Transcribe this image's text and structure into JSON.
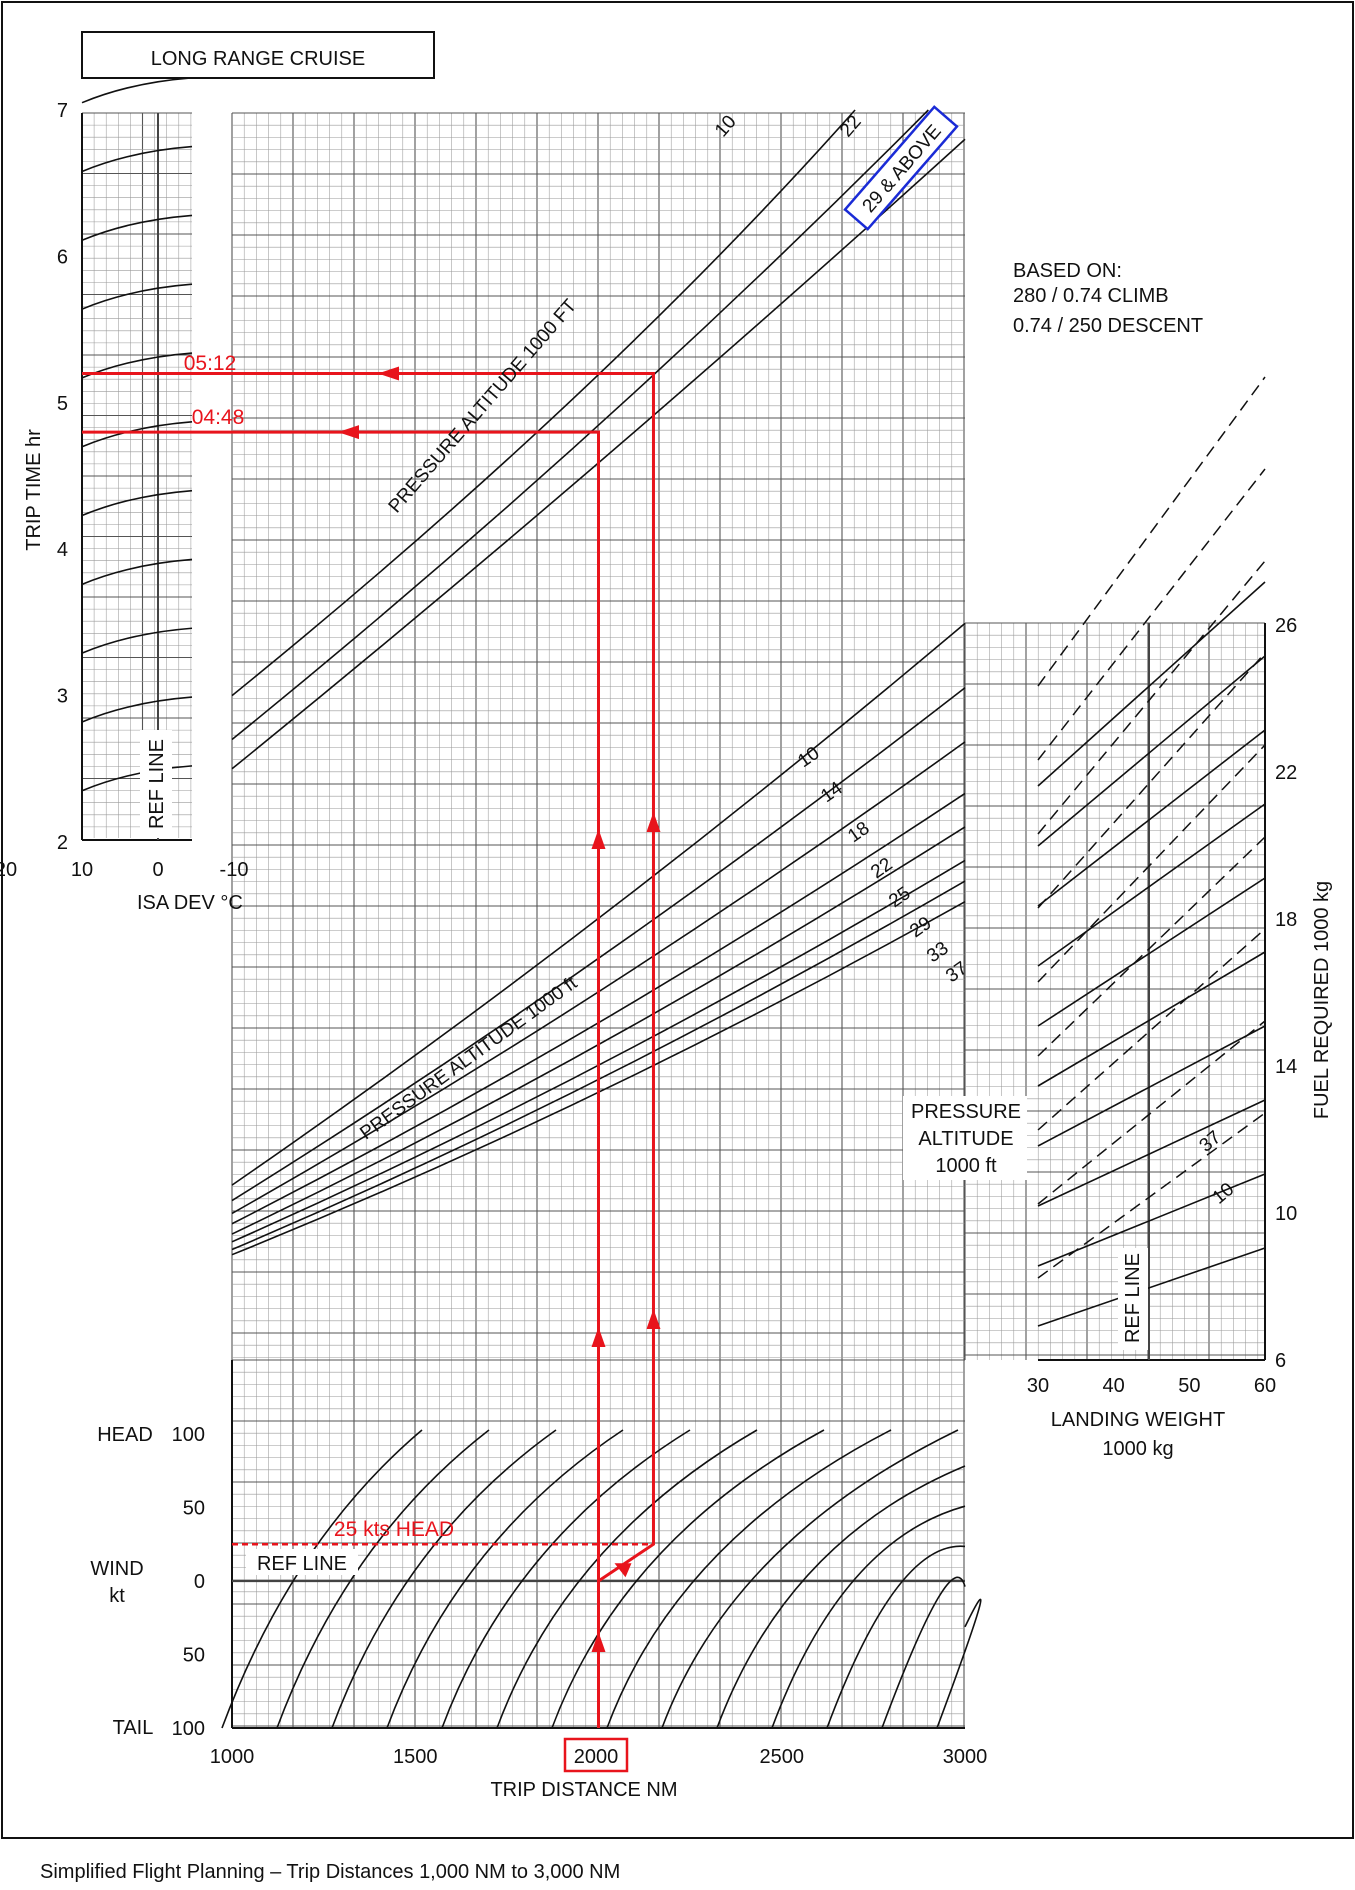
{
  "title": "LONG RANGE CRUISE",
  "caption": "Simplified Flight Planning – Trip Distances 1,000 NM to 3,000 NM",
  "based_on": [
    "BASED ON:",
    "280 / 0.74 CLIMB",
    "0.74 / 250 DESCENT"
  ],
  "colors": {
    "annotation": "#e8141c",
    "highlight_box": "#1a2bd6",
    "curves": "#111111",
    "grid": "#9a9a9a"
  },
  "labels": {
    "trip_time_axis": "TRIP TIME  hr",
    "isa_dev_axis": "ISA DEV °C",
    "ref_line": "REF LINE",
    "pressure_alt_ft_upper": "PRESSURE ALTITUDE  1000 FT",
    "pressure_alt_ft_lower": "PRESSURE ALTITUDE  1000 ft",
    "above_29": "29 & ABOVE",
    "fuel_axis": "FUEL REQUIRED  1000 kg",
    "landing_weight_1": "LANDING WEIGHT",
    "landing_weight_2": "1000 kg",
    "press_alt_block": [
      "PRESSURE",
      "ALTITUDE",
      "1000 ft"
    ],
    "head": "HEAD",
    "tail": "TAIL",
    "wind_1": "WIND",
    "wind_2": "kt",
    "trip_distance": "TRIP DISTANCE  NM"
  },
  "annotations": {
    "time_short": "04:48",
    "time_long": "05:12",
    "wind": "25 kts HEAD",
    "distance_box": "2000"
  },
  "chart_data": [
    {
      "type": "line",
      "name": "Trip time",
      "x_label": "TRIP DISTANCE  NM",
      "y_label": "TRIP TIME  hr",
      "x_range": [
        1000,
        3000
      ],
      "y_range": [
        2,
        7
      ],
      "y_ticks": [
        "2",
        "3",
        "4",
        "5",
        "6",
        "7"
      ],
      "grid": true,
      "series": [
        {
          "name": "10",
          "points": [
            [
              1000,
              3.0
            ],
            [
              2000,
              5.0
            ],
            [
              2700,
              7.0
            ]
          ]
        },
        {
          "name": "22",
          "points": [
            [
              1000,
              2.7
            ],
            [
              2000,
              4.7
            ],
            [
              2900,
              7.0
            ]
          ]
        },
        {
          "name": "29 & ABOVE",
          "points": [
            [
              1000,
              2.5
            ],
            [
              2000,
              4.5
            ],
            [
              3000,
              6.8
            ]
          ]
        }
      ]
    },
    {
      "type": "line",
      "name": "ISA deviation correction",
      "x_label": "ISA DEV °C",
      "x_ticks": [
        "20",
        "10",
        "0",
        "-10"
      ],
      "x_range": [
        20,
        -10
      ],
      "reference": "REF LINE at 0"
    },
    {
      "type": "line",
      "name": "Fuel required vs trip distance",
      "x_range": [
        1000,
        3000
      ],
      "series": [
        {
          "name": "10",
          "points": [
            [
              1000,
              12.1
            ],
            [
              3000,
              33.9
            ]
          ]
        },
        {
          "name": "14",
          "points": [
            [
              1000,
              11.5
            ],
            [
              3000,
              31.4
            ]
          ]
        },
        {
          "name": "18",
          "points": [
            [
              1000,
              11.0
            ],
            [
              3000,
              29.3
            ]
          ]
        },
        {
          "name": "22",
          "points": [
            [
              1000,
              10.6
            ],
            [
              3000,
              27.3
            ]
          ]
        },
        {
          "name": "25",
          "points": [
            [
              1000,
              10.2
            ],
            [
              3000,
              26.0
            ]
          ]
        },
        {
          "name": "29",
          "points": [
            [
              1000,
              9.9
            ],
            [
              3000,
              24.7
            ]
          ]
        },
        {
          "name": "33",
          "points": [
            [
              1000,
              9.6
            ],
            [
              3000,
              23.9
            ]
          ]
        },
        {
          "name": "37",
          "points": [
            [
              1000,
              9.4
            ],
            [
              3000,
              23.1
            ]
          ]
        }
      ]
    },
    {
      "type": "line",
      "name": "Fuel required vs landing weight",
      "x_label": "LANDING WEIGHT  1000 kg",
      "y_label": "FUEL REQUIRED  1000 kg",
      "x_ticks": [
        "30",
        "40",
        "50",
        "60"
      ],
      "x_range": [
        30,
        60
      ],
      "y_ticks": [
        "6",
        "10",
        "14",
        "18",
        "22",
        "26"
      ],
      "y_range": [
        6,
        26
      ],
      "reference": "REF LINE at 45",
      "series": [
        {
          "name": "10",
          "style": "solid"
        },
        {
          "name": "37",
          "style": "dashed"
        }
      ]
    },
    {
      "type": "line",
      "name": "Wind correction",
      "y_label": "WIND kt",
      "y_ticks": [
        "100",
        "50",
        "0",
        "50",
        "100"
      ],
      "y_range": [
        -100,
        100
      ],
      "y_end_labels": [
        "HEAD",
        "TAIL"
      ],
      "x_ticks": [
        "1000",
        "1500",
        "2000",
        "2500",
        "3000"
      ],
      "x_range": [
        1000,
        3000
      ],
      "reference": "REF LINE at 0 kt"
    },
    {
      "type": "line",
      "name": "Worked example",
      "trip_distance_nm": 2000,
      "wind_kt_head": 25,
      "corrected_distance_nm": 2150,
      "trip_time_zero_wind": "04:48",
      "trip_time_with_wind": "05:12"
    }
  ]
}
